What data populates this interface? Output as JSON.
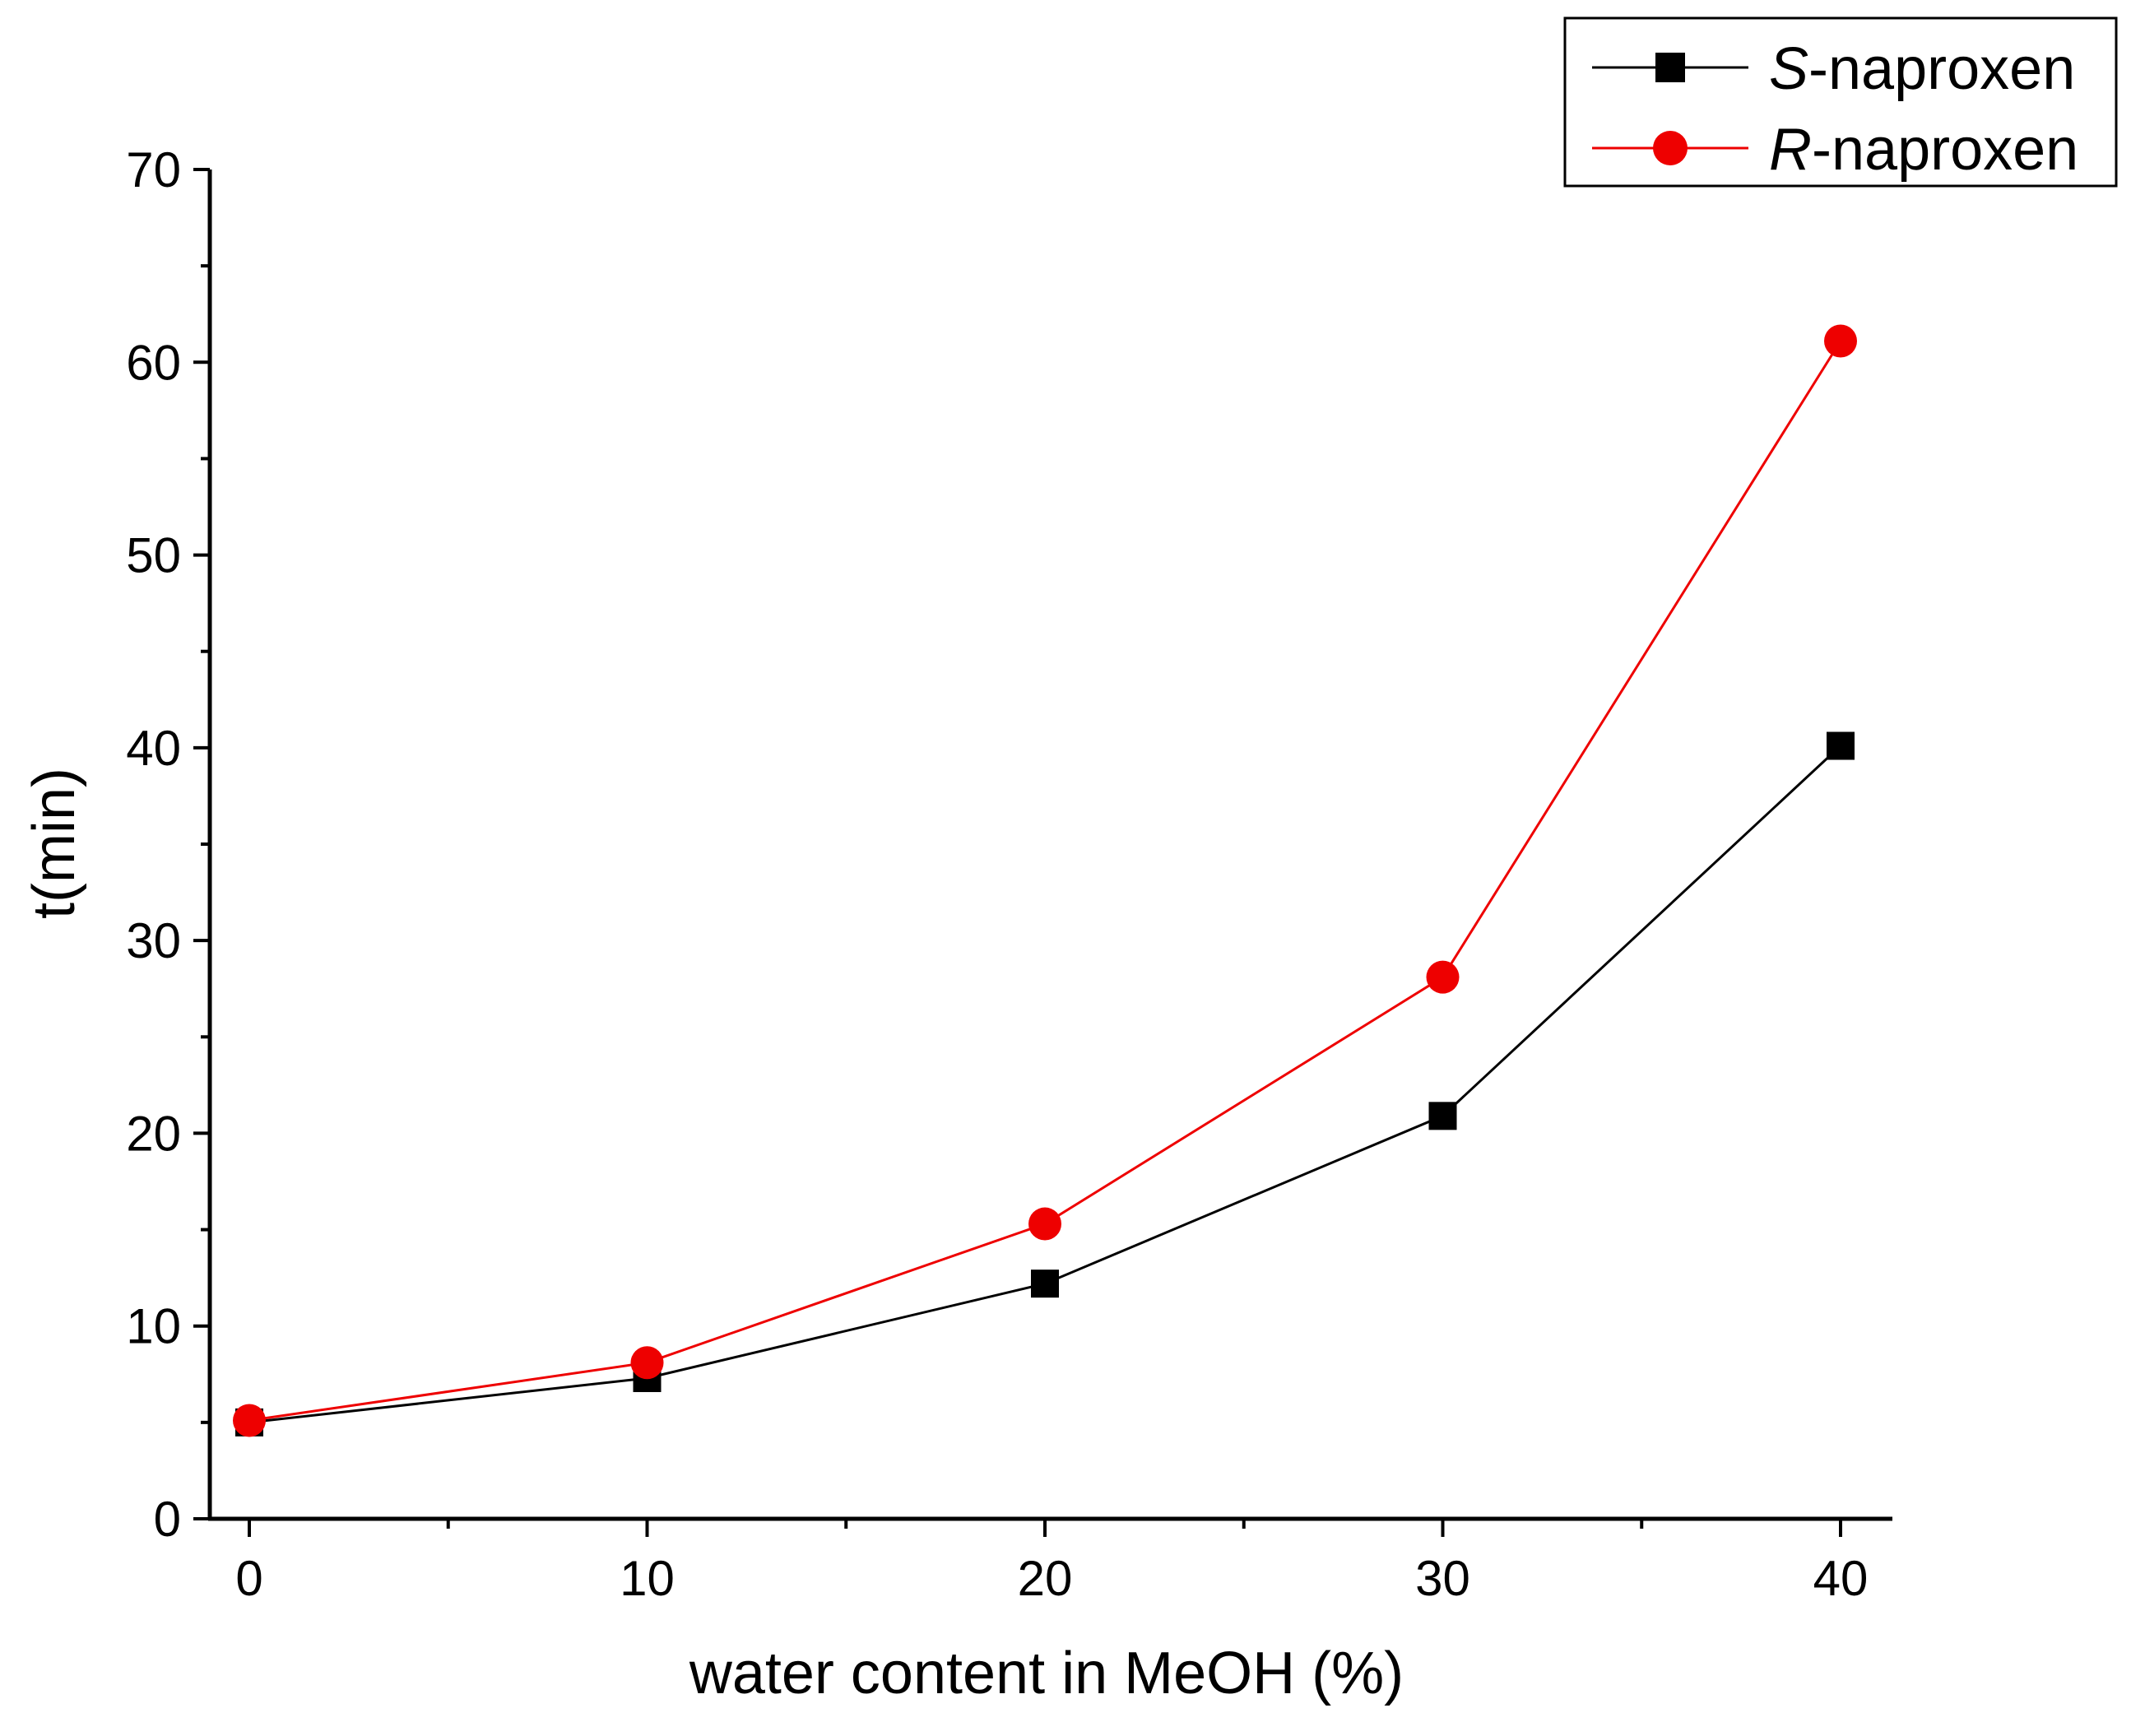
{
  "chart_data": {
    "type": "line",
    "title": "",
    "xlabel": "water content in MeOH (%)",
    "ylabel": "t(min)",
    "x": [
      0,
      10,
      20,
      30,
      40
    ],
    "xlim": [
      -1,
      41
    ],
    "ylim": [
      0,
      70
    ],
    "x_major_ticks": [
      0,
      10,
      20,
      30,
      40
    ],
    "x_tick_labels": [
      "0",
      "10",
      "20",
      "30",
      "40"
    ],
    "x_minor_ticks": [
      5,
      15,
      25,
      35
    ],
    "y_major_ticks": [
      0,
      10,
      20,
      30,
      40,
      50,
      60,
      70
    ],
    "y_tick_labels": [
      "0",
      "10",
      "20",
      "30",
      "40",
      "50",
      "60",
      "70"
    ],
    "y_minor_ticks": [
      5,
      15,
      25,
      35,
      45,
      55,
      65
    ],
    "grid": false,
    "legend_position": "top-right",
    "series": [
      {
        "name_prefix": "S",
        "name_suffix": "-naproxen",
        "color": "#000000",
        "marker": "square",
        "values": [
          5.0,
          7.3,
          12.2,
          20.9,
          40.1
        ]
      },
      {
        "name_prefix": "R",
        "name_suffix": "-naproxen",
        "color": "#ee0000",
        "marker": "circle",
        "values": [
          5.1,
          8.1,
          15.3,
          28.1,
          61.1
        ]
      }
    ]
  }
}
